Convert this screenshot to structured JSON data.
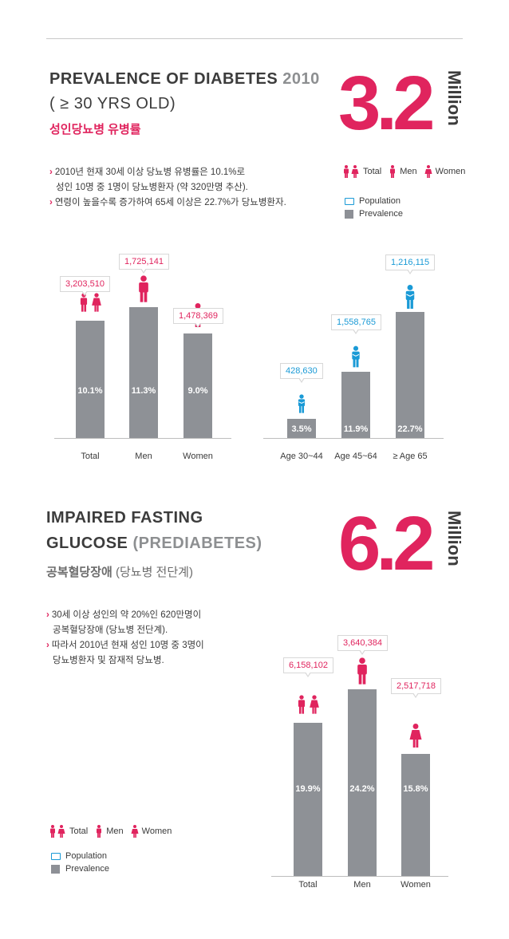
{
  "section1": {
    "title_main": "PREVALENCE OF DIABETES",
    "title_year": "2010",
    "title_line2": "( ≥ 30 YRS OLD)",
    "subtitle": "성인당뇨병 유병률",
    "big_number": "3.2",
    "big_unit": "Million",
    "bullets": [
      "2010년 현재 30세 이상 당뇨병 유병률은 10.1%로",
      "성인 10명 중 1명이 당뇨병환자 (약 320만명  추산).",
      "연령이 높을수록 증가하여 65세 이상은 22.7%가 당뇨병환자."
    ],
    "legend": {
      "total": "Total",
      "men": "Men",
      "women": "Women",
      "population": "Population",
      "prevalence": "Prevalence"
    }
  },
  "section2": {
    "title_line1": "IMPAIRED FASTING",
    "title_line2_main": "GLUCOSE",
    "title_line2_paren": "(PREDIABETES)",
    "subtitle_main": "공복혈당장애",
    "subtitle_paren": "(당뇨병 전단계)",
    "big_number": "6.2",
    "big_unit": "Million",
    "bullets": [
      "30세 이상 성인의 약 20%인 620만명이",
      "공복혈당장애 (당뇨병 전단계).",
      "따라서 2010년 현재 성인 10명 중 3명이",
      "당뇨병환자 및 잠재적 당뇨병."
    ],
    "legend": {
      "total": "Total",
      "men": "Men",
      "women": "Women",
      "population": "Population",
      "prevalence": "Prevalence"
    }
  },
  "colors": {
    "accent_pink": "#e0245e",
    "accent_blue": "#1a9ad6",
    "bar_gray": "#8e9196"
  },
  "chart_data": [
    {
      "type": "bar",
      "title": "",
      "categories": [
        "Total",
        "Men",
        "Women"
      ],
      "population_labels": [
        "3,203,510",
        "1,725,141",
        "1,478,369"
      ],
      "prevalence_labels": [
        "10.1%",
        "11.3%",
        "9.0%"
      ],
      "values": [
        10.1,
        11.3,
        9.0
      ],
      "ylim": [
        0,
        11.3
      ]
    },
    {
      "type": "bar",
      "title": "",
      "categories": [
        "Age 30~44",
        "Age 45~64",
        "≥ Age 65"
      ],
      "population_labels": [
        "428,630",
        "1,558,765",
        "1,216,115"
      ],
      "prevalence_labels": [
        "3.5%",
        "11.9%",
        "22.7%"
      ],
      "values": [
        3.5,
        11.9,
        22.7
      ],
      "ylim": [
        0,
        22.7
      ]
    },
    {
      "type": "bar",
      "title": "",
      "categories": [
        "Total",
        "Men",
        "Women"
      ],
      "population_labels": [
        "6,158,102",
        "3,640,384",
        "2,517,718"
      ],
      "prevalence_labels": [
        "19.9%",
        "24.2%",
        "15.8%"
      ],
      "values": [
        19.9,
        24.2,
        15.8
      ],
      "ylim": [
        0,
        24.2
      ]
    }
  ]
}
